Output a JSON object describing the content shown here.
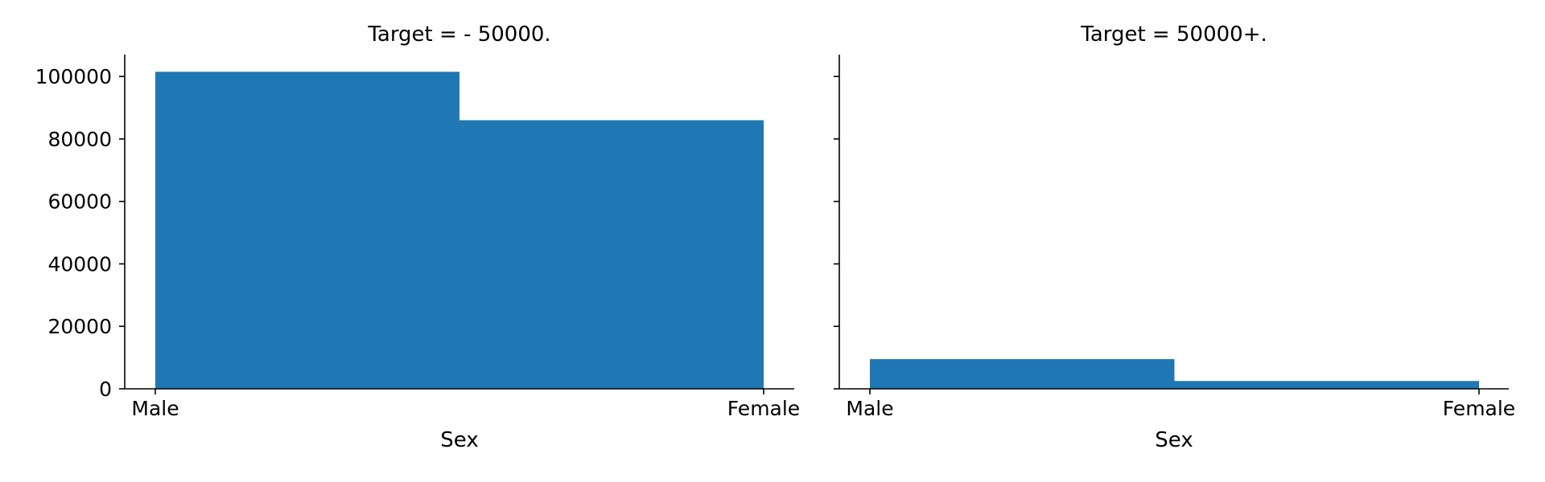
{
  "chart_data": {
    "type": "bar",
    "layout": "two panels side by side, shared y-axis",
    "sharey": true,
    "grid": false,
    "bar_color": "#1f77b4",
    "ylim": [
      0,
      107000
    ],
    "yticks": [
      "0",
      "20000",
      "40000",
      "60000",
      "80000",
      "100000"
    ],
    "panels": [
      {
        "title": "Target =  - 50000.",
        "xlabel": "Sex",
        "ylabel": "",
        "categories": [
          "Male",
          "Female"
        ],
        "values": [
          101500,
          86000
        ]
      },
      {
        "title": "Target =  50000+.",
        "xlabel": "Sex",
        "ylabel": "",
        "categories": [
          "Male",
          "Female"
        ],
        "values": [
          9500,
          2500
        ]
      }
    ]
  }
}
